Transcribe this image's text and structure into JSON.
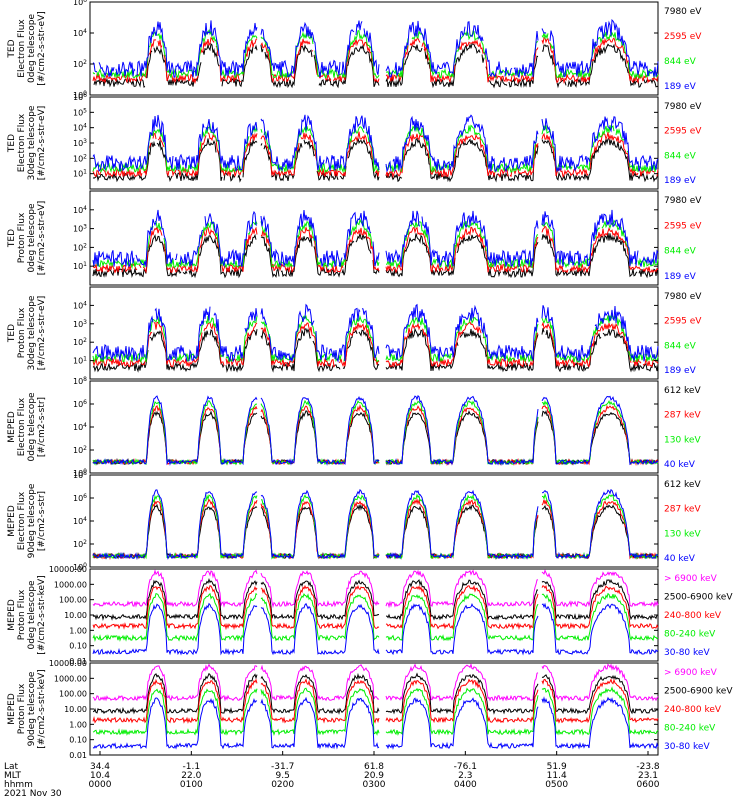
{
  "colors": {
    "black": "#000000",
    "red": "#ff0000",
    "green": "#00ee00",
    "blue": "#0000ff",
    "magenta": "#ff00ff"
  },
  "axis": {
    "row_labels": [
      "Lat",
      "MLT",
      "hhmm"
    ],
    "date": "2021 Nov 30",
    "lat": [
      "34.4",
      "-1.1",
      "-31.7",
      "61.8",
      "-76.1",
      "51.9",
      "-23.8"
    ],
    "mlt": [
      "10.4",
      "22.0",
      "9.5",
      "20.9",
      "2.3",
      "11.4",
      "23.1"
    ],
    "hhmm": [
      "0000",
      "0100",
      "0200",
      "0300",
      "0400",
      "0500",
      "0600"
    ]
  },
  "chart_data": [
    {
      "type": "line",
      "ylabel": [
        "TED",
        "Electron Flux",
        "0deg telescope",
        "[#/cm2-s-str-eV]"
      ],
      "ylog": true,
      "ylim_exp": [
        0,
        6
      ],
      "tick_exps": [
        0,
        2,
        4,
        6
      ],
      "series": [
        {
          "name": "7980 eV",
          "color": "black"
        },
        {
          "name": "2595 eV",
          "color": "red"
        },
        {
          "name": "844 eV",
          "color": "green"
        },
        {
          "name": "189 eV",
          "color": "blue"
        }
      ]
    },
    {
      "type": "line",
      "ylabel": [
        "TED",
        "Electron Flux",
        "30deg telescope",
        "[#/cm2-s-str-eV]"
      ],
      "ylog": true,
      "ylim_exp": [
        0,
        6
      ],
      "tick_exps": [
        1,
        2,
        3,
        4,
        5,
        6
      ],
      "series": [
        {
          "name": "7980 eV",
          "color": "black"
        },
        {
          "name": "2595 eV",
          "color": "red"
        },
        {
          "name": "844 eV",
          "color": "green"
        },
        {
          "name": "189 eV",
          "color": "blue"
        }
      ]
    },
    {
      "type": "line",
      "ylabel": [
        "TED",
        "Proton Flux",
        "0deg telescope",
        "[#/cm2-s-str-eV]"
      ],
      "ylog": true,
      "ylim_exp": [
        0,
        5
      ],
      "tick_exps": [
        1,
        2,
        3,
        4
      ],
      "series": [
        {
          "name": "7980 eV",
          "color": "black"
        },
        {
          "name": "2595 eV",
          "color": "red"
        },
        {
          "name": "844 eV",
          "color": "green"
        },
        {
          "name": "189 eV",
          "color": "blue"
        }
      ]
    },
    {
      "type": "line",
      "ylabel": [
        "TED",
        "Proton Flux",
        "30deg telescope",
        "[#/cm2-s-str-eV]"
      ],
      "ylog": true,
      "ylim_exp": [
        0,
        5
      ],
      "tick_exps": [
        1,
        2,
        3,
        4
      ],
      "series": [
        {
          "name": "7980 eV",
          "color": "black"
        },
        {
          "name": "2595 eV",
          "color": "red"
        },
        {
          "name": "844 eV",
          "color": "green"
        },
        {
          "name": "189 eV",
          "color": "blue"
        }
      ]
    },
    {
      "type": "line",
      "ylabel": [
        "MEPED",
        "Electron Flux",
        "0deg telescope",
        "[#/cm2-s-str]"
      ],
      "ylog": true,
      "ylim_exp": [
        0,
        8
      ],
      "tick_exps": [
        0,
        2,
        4,
        6,
        8
      ],
      "series": [
        {
          "name": "612 keV",
          "color": "black"
        },
        {
          "name": "287 keV",
          "color": "red"
        },
        {
          "name": "130 keV",
          "color": "green"
        },
        {
          "name": "40 keV",
          "color": "blue"
        }
      ]
    },
    {
      "type": "line",
      "ylabel": [
        "MEPED",
        "Electron Flux",
        "90deg telescope",
        "[#/cm2-s-str]"
      ],
      "ylog": true,
      "ylim_exp": [
        0,
        8
      ],
      "tick_exps": [
        0,
        2,
        4,
        6,
        8
      ],
      "series": [
        {
          "name": "612 keV",
          "color": "black"
        },
        {
          "name": "287 keV",
          "color": "red"
        },
        {
          "name": "130 keV",
          "color": "green"
        },
        {
          "name": "40 keV",
          "color": "blue"
        }
      ]
    },
    {
      "type": "line",
      "ylabel": [
        "MEPED",
        "Proton Flux",
        "0deg telescope",
        "[#/cm2-s-str-keV]"
      ],
      "ylog": true,
      "ylim_exp": [
        -2,
        4
      ],
      "tick_exps": [
        -2,
        -1,
        0,
        1,
        2,
        3,
        4
      ],
      "tick_labels": [
        "0.01",
        "0.10",
        "1.00",
        "10.00",
        "100.00",
        "1000.00",
        "10000.00"
      ],
      "series": [
        {
          "name": "> 6900 keV",
          "color": "magenta"
        },
        {
          "name": "2500-6900 keV",
          "color": "black"
        },
        {
          "name": "240-800 keV",
          "color": "red"
        },
        {
          "name": "80-240 keV",
          "color": "green"
        },
        {
          "name": "30-80 keV",
          "color": "blue"
        }
      ]
    },
    {
      "type": "line",
      "ylabel": [
        "MEPED",
        "Proton Flux",
        "90deg telescope",
        "[#/cm2-s-str-keV]"
      ],
      "ylog": true,
      "ylim_exp": [
        -2,
        4
      ],
      "tick_exps": [
        -2,
        -1,
        0,
        1,
        2,
        3,
        4
      ],
      "tick_labels": [
        "0.01",
        "0.10",
        "1.00",
        "10.00",
        "100.00",
        "1000.00",
        "10000.00"
      ],
      "series": [
        {
          "name": "> 6900 keV",
          "color": "magenta"
        },
        {
          "name": "2500-6900 keV",
          "color": "black"
        },
        {
          "name": "240-800 keV",
          "color": "red"
        },
        {
          "name": "80-240 keV",
          "color": "green"
        },
        {
          "name": "30-80 keV",
          "color": "blue"
        }
      ]
    }
  ]
}
